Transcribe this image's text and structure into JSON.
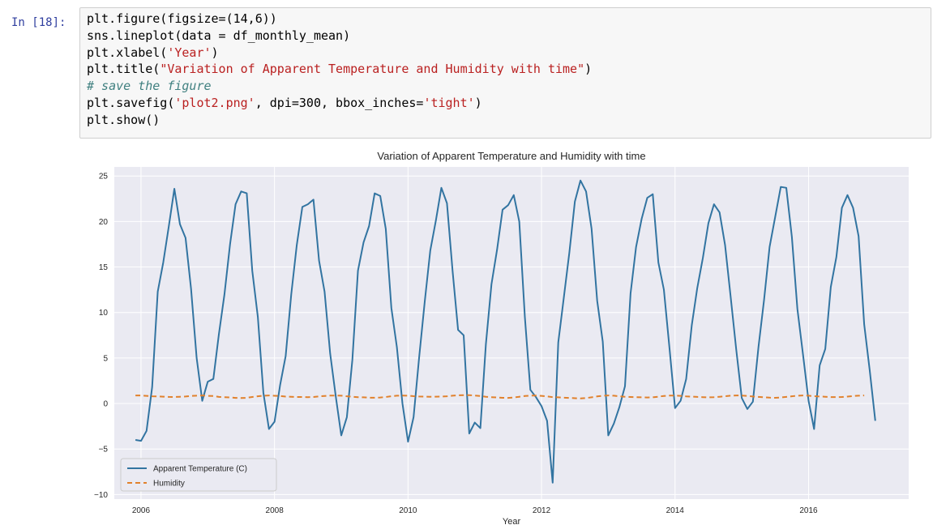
{
  "cell": {
    "prompt": "In [18]:",
    "code_lines": [
      [
        {
          "t": "plt.figure(figsize=(14,6))",
          "c": ""
        }
      ],
      [
        {
          "t": "sns.lineplot(data = df_monthly_mean)",
          "c": ""
        }
      ],
      [
        {
          "t": "plt.xlabel(",
          "c": ""
        },
        {
          "t": "'Year'",
          "c": "s"
        },
        {
          "t": ")",
          "c": ""
        }
      ],
      [
        {
          "t": "plt.title(",
          "c": ""
        },
        {
          "t": "\"Variation of Apparent Temperature and Humidity with time\"",
          "c": "s"
        },
        {
          "t": ")",
          "c": ""
        }
      ],
      [
        {
          "t": "# save the figure",
          "c": "c"
        }
      ],
      [
        {
          "t": "plt.savefig(",
          "c": ""
        },
        {
          "t": "'plot2.png'",
          "c": "s"
        },
        {
          "t": ", dpi=300, bbox_inches=",
          "c": ""
        },
        {
          "t": "'tight'",
          "c": "s"
        },
        {
          "t": ")",
          "c": ""
        }
      ],
      [
        {
          "t": "plt.show()",
          "c": ""
        }
      ]
    ]
  },
  "chart_data": {
    "type": "line",
    "title": "Variation of Apparent Temperature and Humidity with time",
    "xlabel": "Year",
    "ylabel": "",
    "xlim": [
      2005.6,
      2017.5
    ],
    "ylim": [
      -10.5,
      26
    ],
    "xticks": [
      2006,
      2008,
      2010,
      2012,
      2014,
      2016
    ],
    "yticks": [
      -10,
      -5,
      0,
      5,
      10,
      15,
      20,
      25
    ],
    "ytick_labels": [
      "−10",
      "−5",
      "0",
      "5",
      "10",
      "15",
      "20",
      "25"
    ],
    "grid": true,
    "legend_position": "lower-left",
    "x_start": 2005.917,
    "x_step": 0.08333,
    "series": [
      {
        "name": "Apparent Temperature (C)",
        "color": "#3274a1",
        "dash": "solid",
        "values": [
          -4.0,
          -4.1,
          -3.0,
          1.8,
          12.3,
          15.5,
          19.5,
          23.6,
          19.7,
          18.2,
          12.6,
          5.0,
          0.3,
          2.4,
          2.7,
          7.6,
          12.0,
          17.5,
          21.9,
          23.3,
          23.1,
          14.6,
          9.5,
          1.2,
          -2.8,
          -2.0,
          2.0,
          5.2,
          12.0,
          17.4,
          21.6,
          21.9,
          22.4,
          15.7,
          12.3,
          5.5,
          0.8,
          -3.5,
          -1.5,
          4.8,
          14.6,
          17.7,
          19.5,
          23.1,
          22.8,
          19.2,
          10.5,
          6.2,
          0.0,
          -4.2,
          -1.5,
          5.1,
          11.2,
          16.8,
          20.1,
          23.7,
          22.0,
          14.6,
          8.1,
          7.5,
          -3.3,
          -2.1,
          -2.7,
          6.5,
          13.1,
          16.9,
          21.3,
          21.8,
          22.9,
          20.0,
          9.5,
          1.5,
          0.7,
          -0.3,
          -1.9,
          -8.7,
          6.7,
          11.6,
          16.6,
          22.2,
          24.5,
          23.3,
          19.2,
          11.3,
          6.8,
          -3.5,
          -2.2,
          -0.4,
          1.9,
          12.1,
          17.2,
          20.3,
          22.6,
          23.0,
          15.5,
          12.5,
          6.1,
          -0.5,
          0.3,
          2.7,
          8.6,
          12.7,
          16.0,
          19.8,
          21.9,
          21.0,
          17.4,
          11.7,
          5.9,
          0.6,
          -0.6,
          0.2,
          6.2,
          11.4,
          17.2,
          20.5,
          23.8,
          23.7,
          18.3,
          10.4,
          5.4,
          0.3,
          -2.8,
          4.2,
          6.0,
          12.8,
          16.1,
          21.5,
          22.9,
          21.5,
          18.4,
          8.7,
          3.6,
          -1.9
        ]
      },
      {
        "name": "Humidity",
        "color": "#e1812c",
        "dash": "6,4",
        "values": [
          0.89,
          0.88,
          0.84,
          0.8,
          0.78,
          0.75,
          0.73,
          0.72,
          0.74,
          0.77,
          0.83,
          0.86,
          0.89,
          0.84,
          0.82,
          0.73,
          0.7,
          0.67,
          0.62,
          0.6,
          0.63,
          0.72,
          0.8,
          0.86,
          0.89,
          0.85,
          0.82,
          0.76,
          0.74,
          0.72,
          0.72,
          0.7,
          0.72,
          0.78,
          0.83,
          0.87,
          0.88,
          0.86,
          0.8,
          0.74,
          0.7,
          0.68,
          0.65,
          0.64,
          0.66,
          0.72,
          0.8,
          0.86,
          0.88,
          0.86,
          0.81,
          0.77,
          0.75,
          0.74,
          0.75,
          0.76,
          0.8,
          0.86,
          0.9,
          0.91,
          0.92,
          0.88,
          0.82,
          0.74,
          0.7,
          0.66,
          0.63,
          0.62,
          0.66,
          0.74,
          0.82,
          0.87,
          0.88,
          0.84,
          0.78,
          0.7,
          0.68,
          0.64,
          0.62,
          0.58,
          0.56,
          0.6,
          0.68,
          0.78,
          0.85,
          0.89,
          0.86,
          0.8,
          0.74,
          0.72,
          0.7,
          0.68,
          0.66,
          0.68,
          0.75,
          0.83,
          0.87,
          0.88,
          0.84,
          0.79,
          0.75,
          0.73,
          0.7,
          0.68,
          0.7,
          0.74,
          0.8,
          0.86,
          0.89,
          0.87,
          0.83,
          0.77,
          0.73,
          0.69,
          0.65,
          0.63,
          0.66,
          0.73,
          0.8,
          0.86,
          0.89,
          0.86,
          0.81,
          0.77,
          0.74,
          0.71,
          0.7,
          0.72,
          0.76,
          0.82,
          0.86,
          0.89
        ]
      }
    ]
  }
}
